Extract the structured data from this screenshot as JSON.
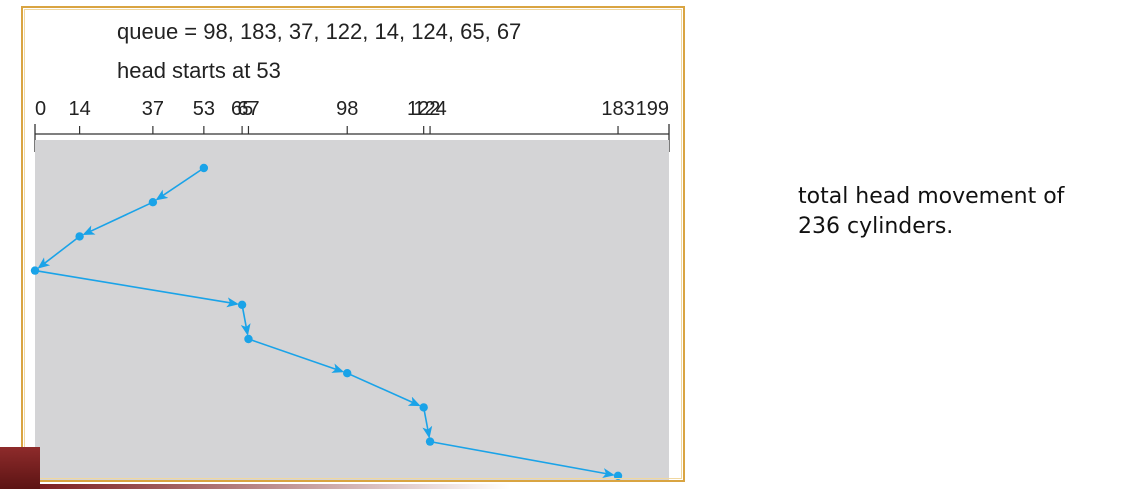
{
  "figure": {
    "queue_text": "queue = 98, 183, 37, 122, 14, 124, 65, 67",
    "head_text": "head starts at 53",
    "axis": {
      "min": 0,
      "max": 199,
      "ticks": [
        {
          "value": 0,
          "label": "0"
        },
        {
          "value": 14,
          "label": "14"
        },
        {
          "value": 37,
          "label": "37"
        },
        {
          "value": 53,
          "label": "53"
        },
        {
          "value": 65,
          "label": "65"
        },
        {
          "value": 67,
          "label": "67"
        },
        {
          "value": 98,
          "label": "98"
        },
        {
          "value": 122,
          "label": "122"
        },
        {
          "value": 124,
          "label": "124"
        },
        {
          "value": 183,
          "label": "183"
        },
        {
          "value": 199,
          "label": "199"
        }
      ]
    },
    "head_path": [
      53,
      37,
      14,
      0,
      65,
      67,
      98,
      122,
      124,
      183
    ],
    "colors": {
      "path": "#1aa3e8",
      "plot_background": "#d4d4d6",
      "frame": "#d9a441"
    }
  },
  "summary": {
    "line1": "total head movement of",
    "line2": "236 cylinders."
  }
}
